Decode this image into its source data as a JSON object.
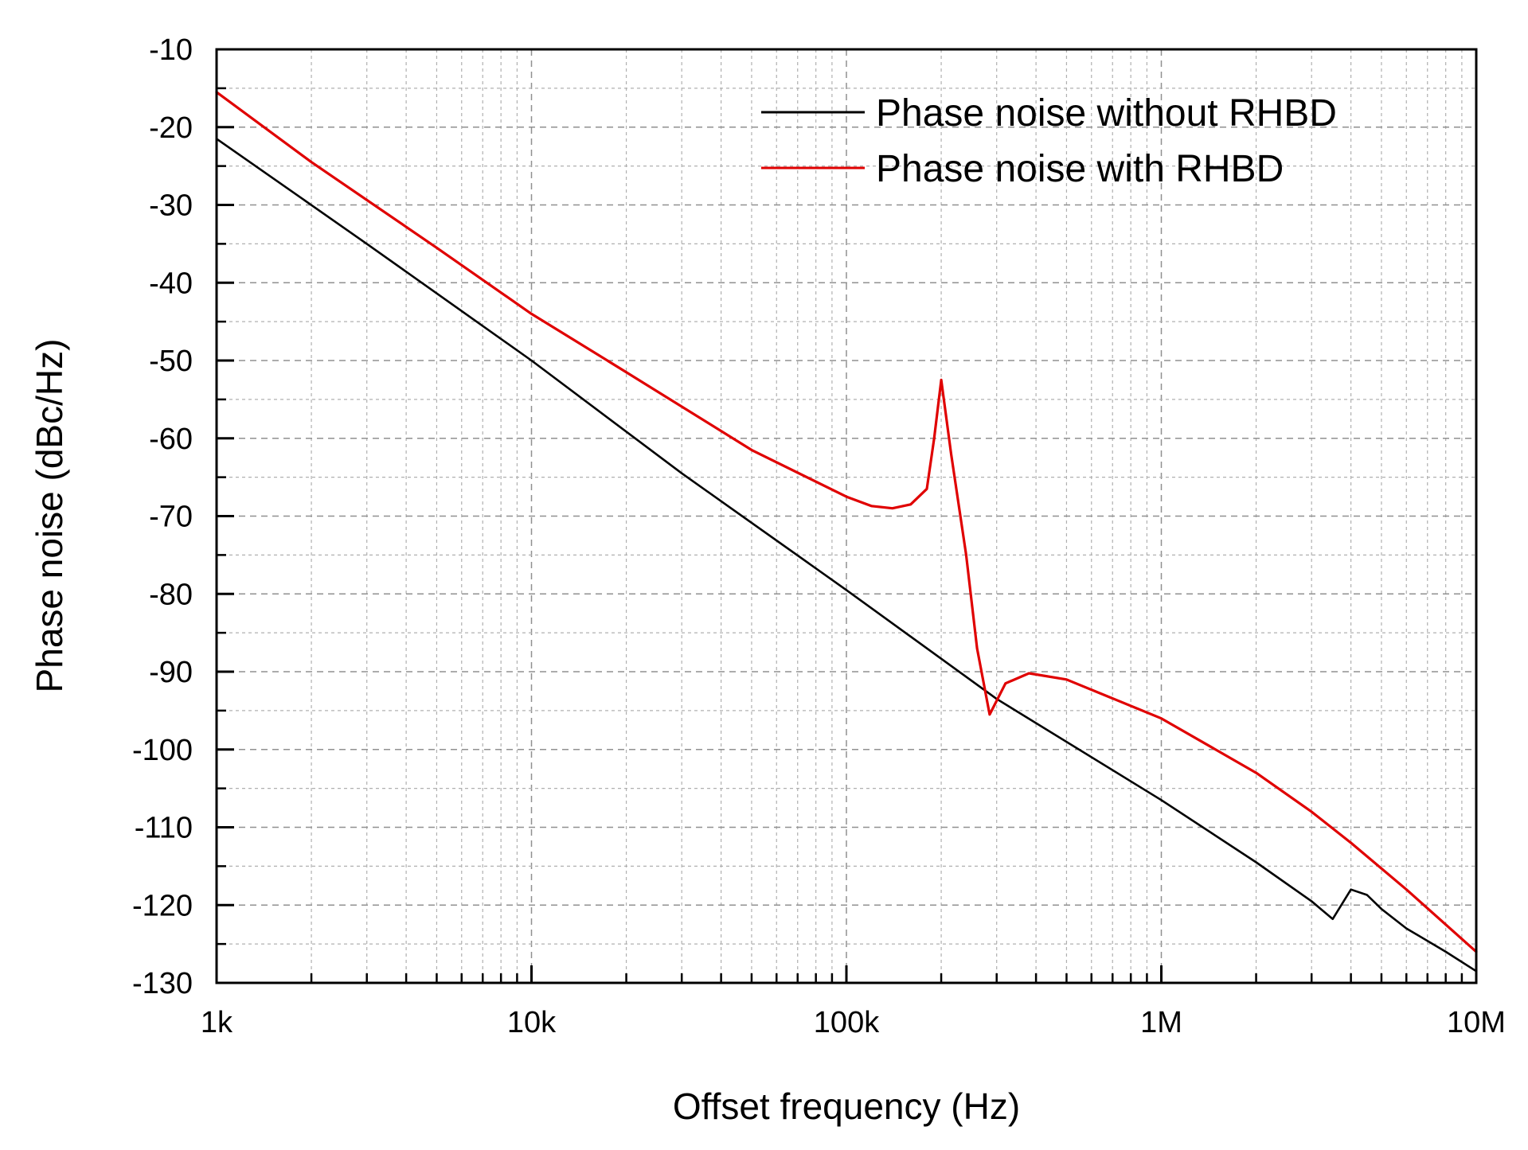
{
  "chart_data": {
    "type": "line",
    "title": "",
    "xlabel": "Offset frequency (Hz)",
    "ylabel": "Phase noise (dBc/Hz)",
    "xscale": "log",
    "xlim": [
      1000,
      10000000
    ],
    "ylim": [
      -130,
      -10
    ],
    "grid": true,
    "legend_position": "top-right",
    "x_ticks": [
      {
        "value": 1000,
        "label": "1k"
      },
      {
        "value": 10000,
        "label": "10k"
      },
      {
        "value": 100000,
        "label": "100k"
      },
      {
        "value": 1000000,
        "label": "1M"
      },
      {
        "value": 10000000,
        "label": "10M"
      }
    ],
    "y_ticks": [
      {
        "value": -10,
        "label": "-10"
      },
      {
        "value": -20,
        "label": "-20"
      },
      {
        "value": -30,
        "label": "-30"
      },
      {
        "value": -40,
        "label": "-40"
      },
      {
        "value": -50,
        "label": "-50"
      },
      {
        "value": -60,
        "label": "-60"
      },
      {
        "value": -70,
        "label": "-70"
      },
      {
        "value": -80,
        "label": "-80"
      },
      {
        "value": -90,
        "label": "-90"
      },
      {
        "value": -100,
        "label": "-100"
      },
      {
        "value": -110,
        "label": "-110"
      },
      {
        "value": -120,
        "label": "-120"
      },
      {
        "value": -130,
        "label": "-130"
      }
    ],
    "series": [
      {
        "name": "Phase noise without RHBD",
        "color": "#000000",
        "points": [
          [
            1000,
            -21.5
          ],
          [
            3000,
            -35
          ],
          [
            10000,
            -50
          ],
          [
            30000,
            -64.5
          ],
          [
            100000,
            -79.5
          ],
          [
            300000,
            -93.5
          ],
          [
            1000000,
            -106.5
          ],
          [
            2000000,
            -114.5
          ],
          [
            3000000,
            -119.5
          ],
          [
            3500000,
            -121.8
          ],
          [
            4000000,
            -118
          ],
          [
            4500000,
            -118.7
          ],
          [
            5000000,
            -120.5
          ],
          [
            6000000,
            -123
          ],
          [
            8000000,
            -126
          ],
          [
            10000000,
            -128.5
          ]
        ]
      },
      {
        "name": "Phase noise with RHBD",
        "color": "#e00000",
        "points": [
          [
            1000,
            -15.5
          ],
          [
            2000,
            -24.5
          ],
          [
            5000,
            -35.5
          ],
          [
            10000,
            -44
          ],
          [
            20000,
            -51.5
          ],
          [
            50000,
            -61.5
          ],
          [
            100000,
            -67.5
          ],
          [
            120000,
            -68.7
          ],
          [
            140000,
            -69
          ],
          [
            160000,
            -68.5
          ],
          [
            180000,
            -66.5
          ],
          [
            190000,
            -60
          ],
          [
            200000,
            -52.5
          ],
          [
            215000,
            -62
          ],
          [
            240000,
            -75
          ],
          [
            260000,
            -87
          ],
          [
            285000,
            -95.5
          ],
          [
            320000,
            -91.5
          ],
          [
            380000,
            -90.2
          ],
          [
            500000,
            -91
          ],
          [
            1000000,
            -96
          ],
          [
            2000000,
            -103
          ],
          [
            3000000,
            -108
          ],
          [
            4000000,
            -112
          ],
          [
            6000000,
            -118
          ],
          [
            10000000,
            -126
          ]
        ]
      }
    ]
  }
}
